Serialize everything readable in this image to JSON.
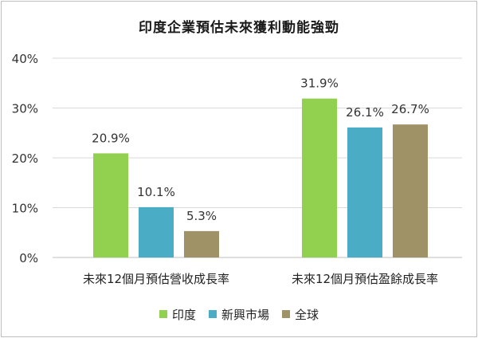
{
  "chart_data": {
    "type": "bar",
    "title": "印度企業預估未來獲利動能強勁",
    "categories": [
      "未來12個月預估營收成長率",
      "未來12個月預估盈餘成長率"
    ],
    "series": [
      {
        "name": "印度",
        "color": "#92d050",
        "values": [
          20.9,
          31.9
        ],
        "labels": [
          "20.9%",
          "31.9%"
        ]
      },
      {
        "name": "新興市場",
        "color": "#4bacc6",
        "values": [
          10.1,
          26.1
        ],
        "labels": [
          "10.1%",
          "26.1%"
        ]
      },
      {
        "name": "全球",
        "color": "#a09267",
        "values": [
          5.3,
          26.7
        ],
        "labels": [
          "5.3%",
          "26.7%"
        ]
      }
    ],
    "ylim": [
      0,
      40
    ],
    "yticks": [
      "0%",
      "10%",
      "20%",
      "30%",
      "40%"
    ],
    "grid": true,
    "legend_position": "bottom"
  }
}
